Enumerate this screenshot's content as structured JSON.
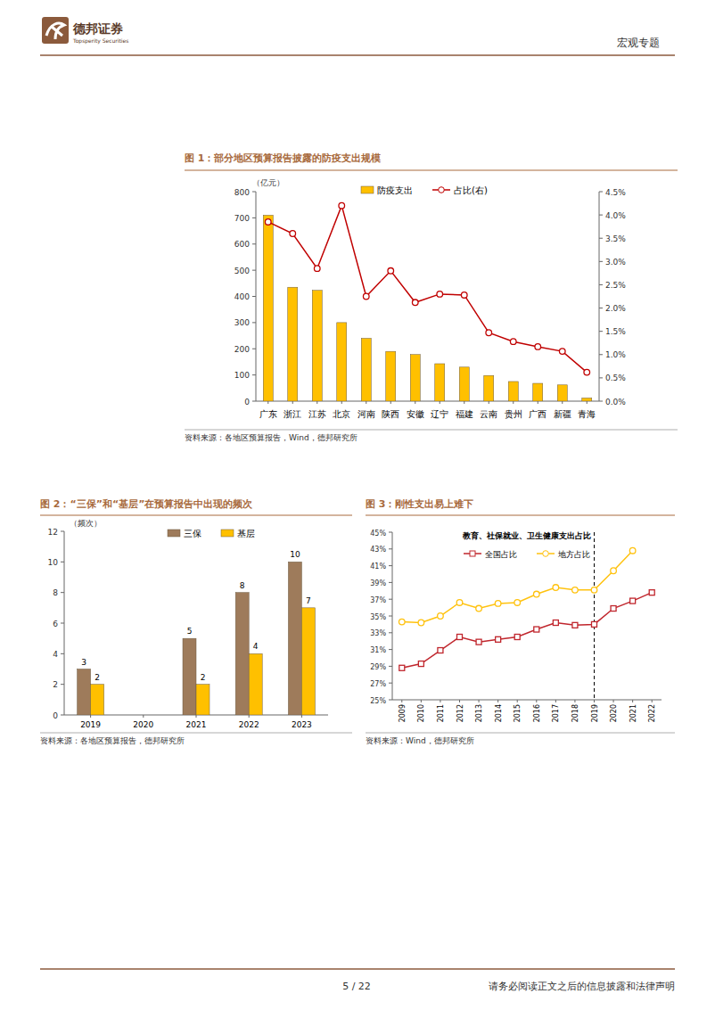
{
  "page": {
    "header": {
      "brand": "德邦证券",
      "brand_en": "Topsperity Securities",
      "section": "宏观专题"
    },
    "footer": {
      "page": "5 / 22",
      "disclaimer": "请务必阅读正文之后的信息披露和法律声明"
    }
  },
  "chart_data": [
    {
      "type": "bar",
      "title": "图 1：部分地区预算报告披露的防疫支出规模",
      "y_label": "（亿元）",
      "categories": [
        "广东",
        "浙江",
        "江苏",
        "北京",
        "河南",
        "陕西",
        "安徽",
        "辽宁",
        "福建",
        "云南",
        "贵州",
        "广西",
        "新疆",
        "青海"
      ],
      "series": [
        {
          "name": "防疫支出",
          "type": "bar",
          "color": "#ffc000",
          "values": [
            710,
            435,
            423,
            300,
            240,
            190,
            178,
            143,
            130,
            98,
            75,
            68,
            62,
            12
          ]
        },
        {
          "name": "占比(右)",
          "type": "line",
          "axis": "y2",
          "color": "#c00000",
          "marker": "circle",
          "values": [
            3.85,
            3.6,
            2.85,
            4.2,
            2.25,
            2.8,
            2.12,
            2.3,
            2.28,
            1.47,
            1.28,
            1.17,
            1.07,
            0.62
          ]
        }
      ],
      "ylim": [
        0,
        800
      ],
      "yticks": [
        0,
        100,
        200,
        300,
        400,
        500,
        600,
        700,
        800
      ],
      "y2lim": [
        0,
        4.5
      ],
      "y2ticks": [
        {
          "value": 0,
          "label": "0.0%"
        },
        {
          "value": 0.5,
          "label": "0.5%"
        },
        {
          "value": 1,
          "label": "1.0%"
        },
        {
          "value": 1.5,
          "label": "1.5%"
        },
        {
          "value": 2,
          "label": "2.0%"
        },
        {
          "value": 2.5,
          "label": "2.5%"
        },
        {
          "value": 3,
          "label": "3.0%"
        },
        {
          "value": 3.5,
          "label": "3.5%"
        },
        {
          "value": 4,
          "label": "4.0%"
        },
        {
          "value": 4.5,
          "label": "4.5%"
        }
      ],
      "grid": false,
      "legend": "top",
      "source": "资料来源：各地区预算报告，Wind，德邦研究所"
    },
    {
      "type": "bar",
      "title": "图 2：“三保”和“基层”在预算报告中出现的频次",
      "y_label": "（频次）",
      "categories": [
        "2019",
        "2020",
        "2021",
        "2022",
        "2023"
      ],
      "series": [
        {
          "name": "三保",
          "color": "#9e7b5b",
          "values": [
            3,
            null,
            5,
            8,
            10
          ]
        },
        {
          "name": "基层",
          "color": "#ffc000",
          "values": [
            2,
            null,
            2,
            4,
            7
          ]
        }
      ],
      "ylim": [
        0,
        12
      ],
      "yticks": [
        0,
        2,
        4,
        6,
        8,
        10,
        12
      ],
      "grid": false,
      "legend": "top",
      "data_labels": true,
      "source": "资料来源：各地区预算报告，德邦研究所"
    },
    {
      "type": "line",
      "title": "图 3：刚性支出易上难下",
      "subtitle": "教育、社保就业、卫生健康支出占比",
      "categories": [
        "2009",
        "2010",
        "2011",
        "2012",
        "2013",
        "2014",
        "2015",
        "2016",
        "2017",
        "2018",
        "2019",
        "2020",
        "2021",
        "2022"
      ],
      "series": [
        {
          "name": "全国占比",
          "color": "#c0262d",
          "marker": "square",
          "values": [
            28.8,
            29.3,
            30.9,
            32.5,
            31.9,
            32.2,
            32.5,
            33.4,
            34.2,
            33.9,
            34.0,
            35.9,
            36.8,
            37.8
          ]
        },
        {
          "name": "地方占比",
          "color": "#ffc20e",
          "marker": "circle",
          "values": [
            34.3,
            34.2,
            35.0,
            36.6,
            35.9,
            36.5,
            36.6,
            37.6,
            38.4,
            38.1,
            38.1,
            40.4,
            42.8,
            null
          ]
        }
      ],
      "ylim": [
        25,
        45
      ],
      "yticks": [
        {
          "value": 25,
          "label": "25%"
        },
        {
          "value": 27,
          "label": "27%"
        },
        {
          "value": 29,
          "label": "29%"
        },
        {
          "value": 31,
          "label": "31%"
        },
        {
          "value": 33,
          "label": "33%"
        },
        {
          "value": 35,
          "label": "35%"
        },
        {
          "value": 37,
          "label": "37%"
        },
        {
          "value": 39,
          "label": "39%"
        },
        {
          "value": 41,
          "label": "41%"
        },
        {
          "value": 43,
          "label": "43%"
        },
        {
          "value": 45,
          "label": "45%"
        }
      ],
      "vline_x": "2019",
      "grid": false,
      "legend": "top",
      "source": "资料来源：Wind，德邦研究所"
    }
  ]
}
